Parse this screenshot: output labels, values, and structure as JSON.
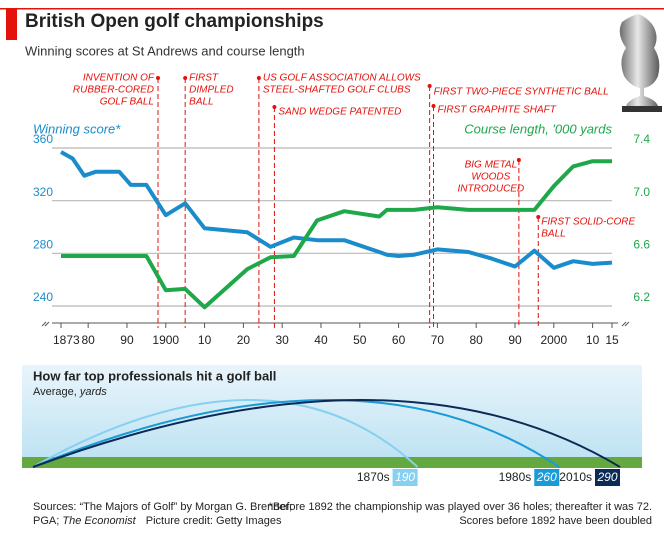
{
  "title": "British Open golf championships",
  "subtitle": "Winning scores at St Andrews and course length",
  "chart_data": [
    {
      "type": "line",
      "y_label": "Winning score*",
      "y2_label": "Course length, '000 yards",
      "x": [
        1873,
        1876,
        1879,
        1882,
        1885,
        1888,
        1891,
        1895,
        1900,
        1905,
        1910,
        1921,
        1927,
        1933,
        1939,
        1946,
        1955,
        1957,
        1960,
        1964,
        1970,
        1978,
        1984,
        1990,
        1995,
        2000,
        2005,
        2010,
        2015
      ],
      "series": [
        {
          "name": "Winning score*",
          "color": "#1b8ccb",
          "axis": "y",
          "values": [
            357,
            352,
            339,
            342,
            342,
            342,
            332,
            332,
            309,
            318,
            299,
            296,
            285,
            292,
            290,
            290,
            281,
            279,
            278,
            279,
            283,
            281,
            276,
            270,
            282,
            269,
            274,
            272,
            273
          ]
        },
        {
          "name": "Course length, '000 yards",
          "color": "#1ea84a",
          "axis": "y2",
          "values": [
            6.58,
            6.58,
            6.58,
            6.58,
            6.58,
            6.58,
            6.58,
            6.58,
            6.32,
            6.33,
            6.19,
            6.48,
            6.57,
            6.58,
            6.85,
            6.92,
            6.88,
            6.93,
            6.93,
            6.93,
            6.95,
            6.93,
            6.93,
            6.93,
            6.93,
            7.11,
            7.26,
            7.3,
            7.3
          ]
        }
      ],
      "xlim": [
        1873,
        2015
      ],
      "xticks": [
        1873,
        {
          "value": 1880,
          "label": "80"
        },
        {
          "value": 1890,
          "label": "90"
        },
        1900,
        {
          "value": 1910,
          "label": "10"
        },
        {
          "value": 1920,
          "label": "20"
        },
        {
          "value": 1930,
          "label": "30"
        },
        {
          "value": 1940,
          "label": "40"
        },
        {
          "value": 1950,
          "label": "50"
        },
        {
          "value": 1960,
          "label": "60"
        },
        {
          "value": 1970,
          "label": "70"
        },
        {
          "value": 1980,
          "label": "80"
        },
        {
          "value": 1990,
          "label": "90"
        },
        2000,
        {
          "value": 2010,
          "label": "10"
        },
        {
          "value": 2015,
          "label": "15"
        }
      ],
      "ylim": [
        240,
        360
      ],
      "yticks": [
        240,
        280,
        320,
        360
      ],
      "y2lim": [
        6.2,
        7.4
      ],
      "y2ticks": [
        6.2,
        6.6,
        {
          "value": 7,
          "label": "7.0"
        },
        7.4
      ],
      "grid": true,
      "annotations": [
        {
          "x": 1898,
          "lines": [
            "INVENTION OF",
            "RUBBER-CORED",
            "GOLF BALL"
          ]
        },
        {
          "x": 1905,
          "lines": [
            "FIRST",
            "DIMPLED",
            "BALL"
          ]
        },
        {
          "x": 1924,
          "lines": [
            "US GOLF ASSOCIATION ALLOWS",
            "STEEL-SHAFTED GOLF CLUBS"
          ]
        },
        {
          "x": 1928,
          "lines": [
            "SAND WEDGE PATENTED"
          ]
        },
        {
          "x": 1968,
          "lines": [
            "FIRST TWO-PIECE SYNTHETIC BALL"
          ]
        },
        {
          "x": 1969,
          "lines": [
            "FIRST GRAPHITE SHAFT"
          ]
        },
        {
          "x": 1991,
          "lines": [
            "BIG METAL",
            "WOODS",
            "INTRODUCED"
          ]
        },
        {
          "x": 1996,
          "lines": [
            "FIRST SOLID-CORE",
            "BALL"
          ]
        }
      ]
    },
    {
      "type": "arc",
      "title": "How far top professionals hit a golf ball",
      "subtitle": "Average,",
      "unit": "yards",
      "categories": [
        "1870s",
        "1980s",
        "2010s"
      ],
      "values": [
        190,
        260,
        290
      ],
      "colors": [
        "#86d0f0",
        "#1a9ad6",
        "#0b2a55"
      ],
      "xlim": [
        0,
        290
      ]
    }
  ],
  "footer": {
    "sources": [
      "Sources: “The Majors of Golf” by Morgan G. Brenner;",
      "PGA;",
      "The Economist",
      "Picture credit: Getty Images"
    ],
    "notes": [
      "*Before 1892 the championship was played over 36 holes; thereafter it was 72.",
      "Scores before 1892 have been doubled"
    ]
  }
}
